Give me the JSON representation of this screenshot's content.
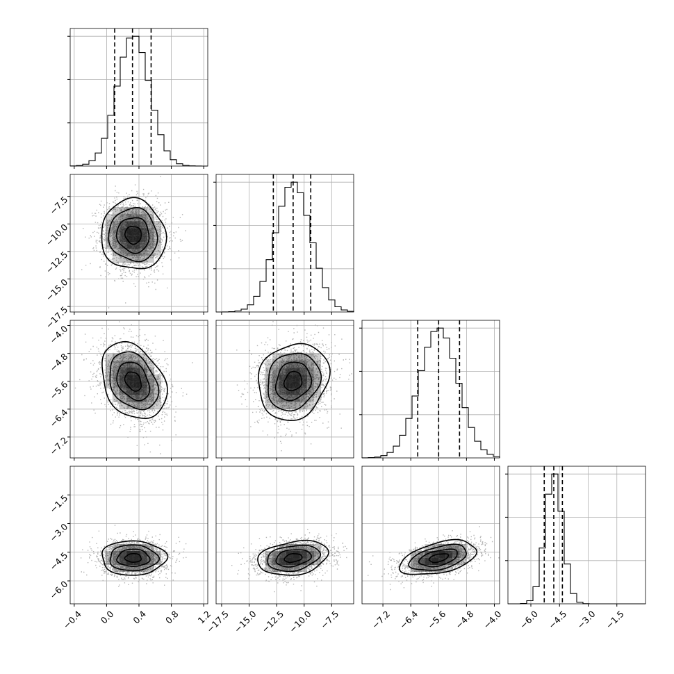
{
  "chart_data": {
    "type": "corner",
    "grid": true,
    "parameters": [
      {
        "range": [
          -0.45,
          1.25
        ],
        "ticks": [
          -0.4,
          0.0,
          0.4,
          0.8,
          1.2
        ],
        "tick_labels": [
          "−0.4",
          "0.0",
          "0.4",
          "0.8",
          "1.2"
        ],
        "quantiles": [
          0.1,
          0.32,
          0.55
        ],
        "mean": 0.33,
        "sd": 0.2
      },
      {
        "range": [
          -18.0,
          -5.5
        ],
        "ticks": [
          -17.5,
          -15.0,
          -12.5,
          -10.0,
          -7.5
        ],
        "tick_labels": [
          "−17.5",
          "−15.0",
          "−12.5",
          "−10.0",
          "−7.5"
        ],
        "quantiles": [
          -12.8,
          -11.0,
          -9.4
        ],
        "mean": -11.0,
        "sd": 1.6
      },
      {
        "range": [
          -7.8,
          -3.85
        ],
        "ticks": [
          -7.2,
          -6.4,
          -5.6,
          -4.8,
          -4.0
        ],
        "tick_labels": [
          "−7.2",
          "−6.4",
          "−5.6",
          "−4.8",
          "−4.0"
        ],
        "quantiles": [
          -6.2,
          -5.6,
          -5.0
        ],
        "mean": -5.6,
        "sd": 0.55
      },
      {
        "range": [
          -7.2,
          0.0
        ],
        "ticks": [
          -6.0,
          -4.5,
          -3.0,
          -1.5
        ],
        "tick_labels": [
          "−6.0",
          "−4.5",
          "−3.0",
          "−1.5"
        ],
        "quantiles": [
          -5.3,
          -4.8,
          -4.35
        ],
        "mean": -4.8,
        "sd": 0.45
      }
    ],
    "correlations": [
      [
        1.0,
        -0.05,
        -0.3,
        0.0
      ],
      [
        -0.05,
        1.0,
        0.15,
        0.25
      ],
      [
        -0.3,
        0.15,
        1.0,
        0.45
      ],
      [
        0.0,
        0.25,
        0.45,
        1.0
      ]
    ],
    "colors": {
      "axes": "#000000",
      "grid": "#b0b0b0",
      "scatter": "#b4b4b4",
      "contour": "#000000",
      "density": "#000000"
    }
  }
}
